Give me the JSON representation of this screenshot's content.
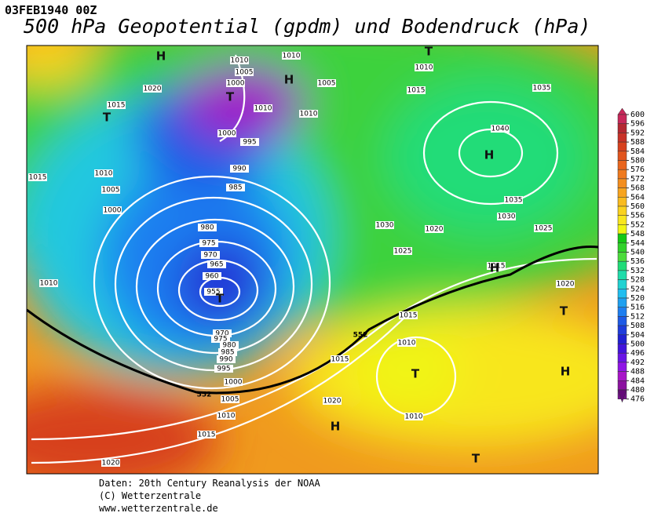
{
  "header": {
    "date": "03FEB1940 00Z",
    "title": "500 hPa Geopotential (gpdm) und Bodendruck (hPa)"
  },
  "colorbar": {
    "ticks": [
      600,
      596,
      592,
      588,
      584,
      580,
      576,
      572,
      568,
      564,
      560,
      556,
      552,
      548,
      544,
      540,
      536,
      532,
      528,
      524,
      520,
      516,
      512,
      508,
      504,
      500,
      496,
      492,
      488,
      484,
      480,
      476
    ],
    "colors": [
      "#c8285a",
      "#b42832",
      "#c83228",
      "#d7411e",
      "#e1551e",
      "#e9661e",
      "#ef7a1e",
      "#f38e1e",
      "#f7a41e",
      "#f9bb1e",
      "#fad21e",
      "#f8e61e",
      "#f0f514",
      "#14c814",
      "#30d22a",
      "#4cdc3c",
      "#20dc78",
      "#20dcaa",
      "#20d2d2",
      "#20bef0",
      "#1ea0f0",
      "#1e7ef0",
      "#1e5ae6",
      "#1e3cdc",
      "#2020d2",
      "#4214dc",
      "#6a14e6",
      "#9014e6",
      "#a814c8",
      "#8c12a0",
      "#781090",
      "#640a78"
    ]
  },
  "map": {
    "isobar_labels": [
      1010,
      1010,
      1005,
      1000,
      1010,
      1010,
      1005,
      1000,
      995,
      990,
      985,
      980,
      975,
      970,
      965,
      960,
      955,
      970,
      975,
      980,
      985,
      990,
      995,
      1000,
      1005,
      1010,
      1015,
      1020,
      1015,
      1020,
      1010,
      1015,
      1005,
      1000,
      1010,
      1010,
      1015,
      1035,
      1040,
      1035,
      1030,
      1030,
      1020,
      1025,
      1025,
      1015,
      1020,
      1015,
      1010,
      1015,
      1020,
      1010
    ],
    "contour_labels": [
      552,
      552
    ],
    "centers": [
      "H",
      "H",
      "T",
      "T",
      "T",
      "H",
      "T",
      "T",
      "H",
      "H",
      "T",
      "H",
      "T"
    ]
  },
  "footer": {
    "lines": [
      "Daten: 20th Century Reanalysis der NOAA",
      "(C) Wetterzentrale",
      "www.wetterzentrale.de"
    ]
  }
}
